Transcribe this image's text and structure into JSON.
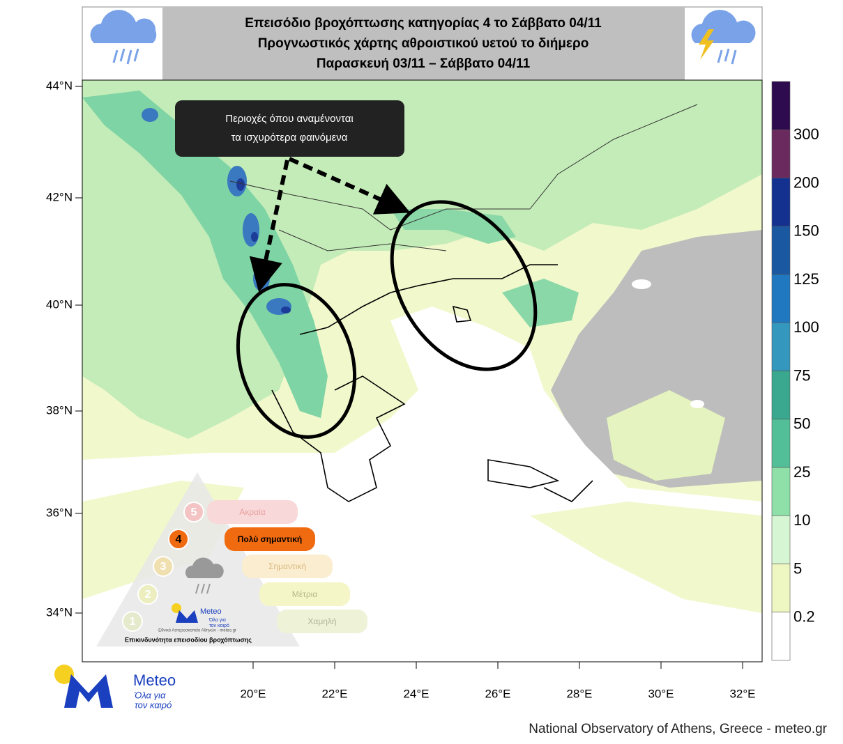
{
  "header": {
    "title_lines": [
      "Επεισόδιο βροχόπτωσης κατηγορίας 4 το Σάββατο 04/11",
      "Προγνωστικός χάρτης αθροιστικού υετού το διήμερο",
      "Παρασκευή 03/11 – Σάββατο 04/11"
    ]
  },
  "annotation": {
    "lines": [
      "Περιοχές όπου αναμένονται",
      "τα ισχυρότερα φαινόμενα"
    ]
  },
  "map": {
    "lat_labels": [
      "44°N",
      "42°N",
      "40°N",
      "38°N",
      "36°N",
      "34°N"
    ],
    "lon_labels": [
      "20°E",
      "22°E",
      "24°E",
      "26°E",
      "28°E",
      "30°E",
      "32°E"
    ]
  },
  "colorbar": {
    "labels": [
      "300",
      "200",
      "150",
      "125",
      "100",
      "75",
      "50",
      "25",
      "10",
      "5",
      "0.2"
    ]
  },
  "risk_scale": {
    "levels": [
      {
        "number": "5",
        "label": "Ακραία"
      },
      {
        "number": "4",
        "label": "Πολύ σημαντική"
      },
      {
        "number": "3",
        "label": "Σημαντική"
      },
      {
        "number": "2",
        "label": "Μέτρια"
      },
      {
        "number": "1",
        "label": "Χαμηλή"
      }
    ],
    "caption": "Επικινδυνότητα επεισοδίου βροχόπτωσης",
    "brand": "Meteo",
    "slogan_lines": [
      "Όλα για",
      "τον καιρό"
    ],
    "credit": "Εθνικό Αστεροσκοπείο Αθηνών - meteo.gr"
  },
  "logo": {
    "brand": "Meteo",
    "slogan_lines": [
      "Όλα για",
      "τον καιρό"
    ]
  },
  "footer": {
    "text": "National Observatory of Athens, Greece - meteo.gr"
  }
}
